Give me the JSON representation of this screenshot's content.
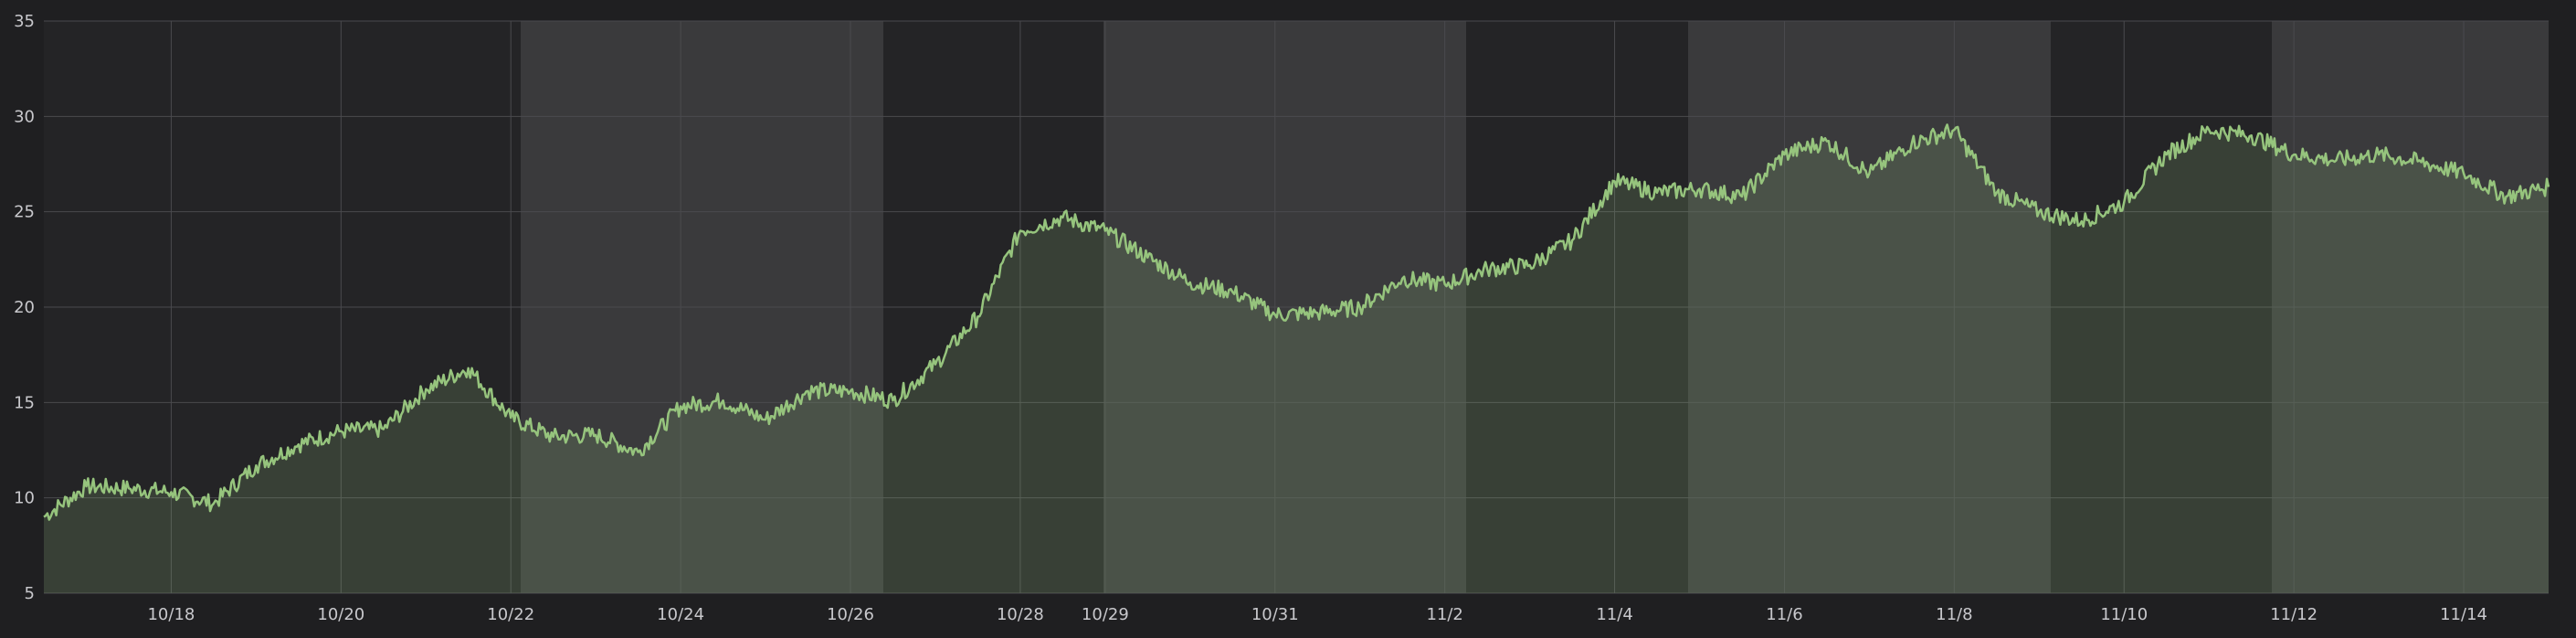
{
  "chart_data": {
    "type": "area",
    "title": "",
    "xlabel": "",
    "ylabel": "",
    "ylim": [
      5,
      35
    ],
    "y_ticks": [
      5,
      10,
      15,
      20,
      25,
      30,
      35
    ],
    "x_ticks": [
      "10/18",
      "10/20",
      "10/22",
      "10/24",
      "10/26",
      "10/28",
      "10/29",
      "10/31",
      "11/2",
      "11/4",
      "11/6",
      "11/8",
      "11/10",
      "11/12",
      "11/14"
    ],
    "grid": true,
    "legend": "none",
    "x": [
      "10/16 12:00",
      "10/17 00:00",
      "10/17 12:00",
      "10/18 00:00",
      "10/18 12:00",
      "10/19 00:00",
      "10/19 12:00",
      "10/20 00:00",
      "10/20 12:00",
      "10/21 00:00",
      "10/21 12:00",
      "10/22 00:00",
      "10/22 12:00",
      "10/23 00:00",
      "10/23 12:00",
      "10/24 00:00",
      "10/24 12:00",
      "10/25 00:00",
      "10/25 12:00",
      "10/26 00:00",
      "10/26 12:00",
      "10/27 00:00",
      "10/27 12:00",
      "10/28 00:00",
      "10/28 12:00",
      "10/29 00:00",
      "10/29 12:00",
      "10/30 00:00",
      "10/30 12:00",
      "10/31 00:00",
      "10/31 12:00",
      "11/1 00:00",
      "11/1 12:00",
      "11/2 00:00",
      "11/2 12:00",
      "11/3 00:00",
      "11/3 12:00",
      "11/4 00:00",
      "11/4 12:00",
      "11/5 00:00",
      "11/5 12:00",
      "11/6 00:00",
      "11/6 12:00",
      "11/7 00:00",
      "11/7 12:00",
      "11/8 00:00",
      "11/8 12:00",
      "11/9 00:00",
      "11/9 12:00",
      "11/10 00:00",
      "11/10 12:00",
      "11/11 00:00",
      "11/11 12:00",
      "11/12 00:00",
      "11/12 12:00",
      "11/13 00:00",
      "11/13 12:00",
      "11/14 00:00",
      "11/14 12:00",
      "11/15 00:00"
    ],
    "series": [
      {
        "values": [
          9.0,
          10.6,
          10.5,
          10.3,
          9.7,
          11.7,
          12.8,
          13.5,
          13.6,
          15.7,
          16.8,
          14.2,
          13.2,
          13.3,
          12.4,
          14.8,
          15.1,
          14.1,
          15.6,
          15.6,
          15.1,
          17.0,
          19.5,
          24.0,
          24.7,
          24.0,
          22.6,
          21.3,
          20.8,
          19.6,
          19.7,
          20.0,
          21.5,
          21.2,
          22.0,
          22.2,
          23.5,
          26.6,
          26.0,
          26.2,
          25.8,
          28.0,
          28.7,
          27.0,
          28.6,
          29.3,
          26.0,
          25.0,
          24.5,
          25.5,
          28.0,
          29.3,
          29.0,
          28.0,
          27.7,
          28.0,
          27.6,
          27.0,
          25.8,
          26.3
        ],
        "color": "#96c47d"
      }
    ],
    "band_colors": [
      "#242426",
      "#3a3a3c"
    ],
    "fill_color": "#96c47d"
  }
}
